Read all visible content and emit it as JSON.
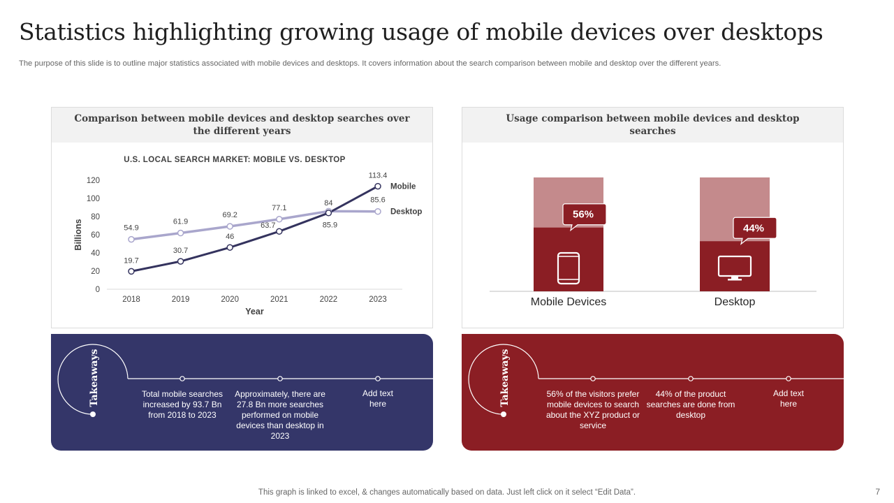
{
  "header": {
    "title": "Statistics highlighting growing usage of mobile devices over desktops",
    "subtitle": "The purpose of this slide is to outline major statistics associated with mobile devices and desktops. It covers information about the search comparison between mobile and desktop over the different years."
  },
  "left_panel": {
    "heading": "Comparison between mobile devices and desktop searches over the different years"
  },
  "right_panel": {
    "heading": "Usage comparison between mobile devices and desktop searches"
  },
  "colors": {
    "mobile_line": "#34335e",
    "desktop_line": "#a9a6cc",
    "dark_red": "#8b1e24",
    "light_red": "#c48a8c",
    "navy": "#343669"
  },
  "chart_data": [
    {
      "type": "line",
      "title": "U.S. LOCAL SEARCH MARKET: MOBILE VS. DESKTOP",
      "xlabel": "Year",
      "ylabel": "Billions",
      "ylim": [
        0,
        120
      ],
      "yticks": [
        0,
        20,
        40,
        60,
        80,
        100,
        120
      ],
      "categories": [
        "2018",
        "2019",
        "2020",
        "2021",
        "2022",
        "2023"
      ],
      "series": [
        {
          "name": "Mobile",
          "values": [
            19.7,
            30.7,
            46,
            63.7,
            84,
            113.4
          ]
        },
        {
          "name": "Desktop",
          "values": [
            54.9,
            61.9,
            69.2,
            77.1,
            85.9,
            85.6
          ]
        }
      ],
      "legend": "right-end labels"
    },
    {
      "type": "bar",
      "categories": [
        "Mobile Devices",
        "Desktop"
      ],
      "values": [
        56,
        44
      ],
      "value_labels": [
        "56%",
        "44%"
      ],
      "ylim": [
        0,
        100
      ]
    }
  ],
  "takeaways_left": {
    "label": "Takeaways",
    "items": [
      "Total mobile searches increased by 93.7 Bn from 2018 to 2023",
      "Approximately, there are 27.8 Bn more searches performed on mobile devices than desktop in 2023",
      "Add text here"
    ]
  },
  "takeaways_right": {
    "label": "Takeaways",
    "items": [
      "56% of the visitors prefer mobile devices to search about the XYZ product or service",
      "44% of the product searches are done from desktop",
      "Add text here"
    ]
  },
  "footer": {
    "note": "This graph is linked to excel, & changes automatically based on data. Just left click on it select “Edit Data”.",
    "page_number": "7"
  }
}
